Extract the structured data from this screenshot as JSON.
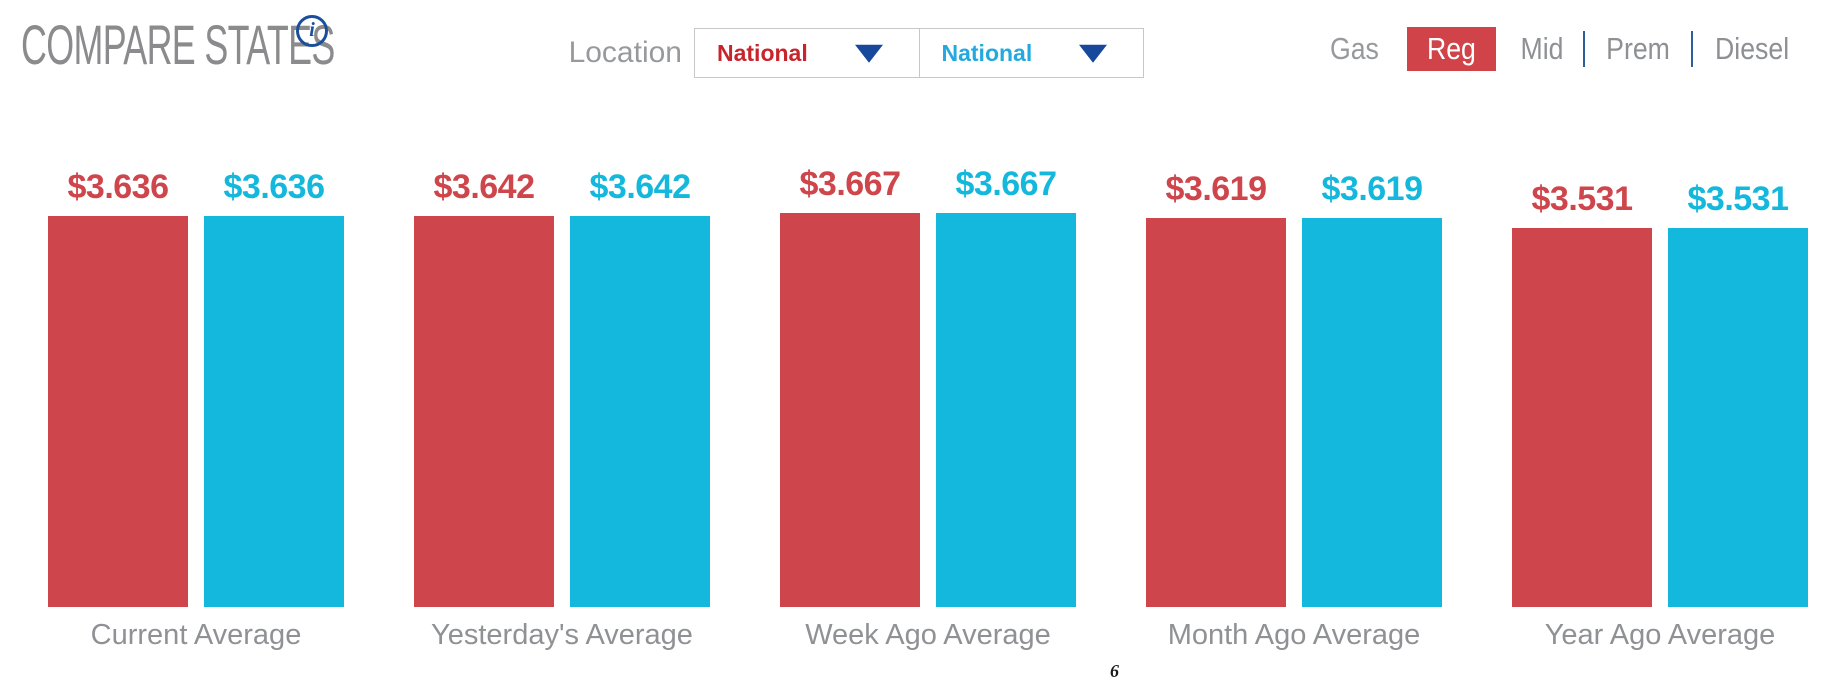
{
  "header": {
    "title": "COMPARE STATES",
    "info_glyph": "i",
    "location_label": "Location",
    "location_dropdowns": [
      {
        "value": "National",
        "text_color": "#c8242c"
      },
      {
        "value": "National",
        "text_color": "#23a9df"
      }
    ],
    "gas_label": "Gas",
    "gas_options": [
      {
        "label": "Reg",
        "selected": true
      },
      {
        "label": "Mid",
        "selected": false
      },
      {
        "label": "Prem",
        "selected": false
      },
      {
        "label": "Diesel",
        "selected": false
      }
    ]
  },
  "chart_data": {
    "type": "bar",
    "title": "",
    "categories": [
      "Current Average",
      "Yesterday's Average",
      "Week Ago Average",
      "Month Ago Average",
      "Year Ago Average"
    ],
    "series": [
      {
        "name": "National",
        "color": "#ce454c",
        "values": [
          3.636,
          3.642,
          3.667,
          3.619,
          3.531
        ]
      },
      {
        "name": "National",
        "color": "#14b8dc",
        "values": [
          3.636,
          3.642,
          3.667,
          3.619,
          3.531
        ]
      }
    ],
    "value_prefix": "$",
    "ylim": [
      0,
      3.667
    ],
    "grid": false,
    "legend": "none"
  },
  "footnote_mark": "6",
  "colors": {
    "accent_red": "#cf4349",
    "accent_cyan": "#14b8dc",
    "navy": "#1b4e9b",
    "label_gray": "#8f9194",
    "border_gray": "#c8c8c8"
  }
}
